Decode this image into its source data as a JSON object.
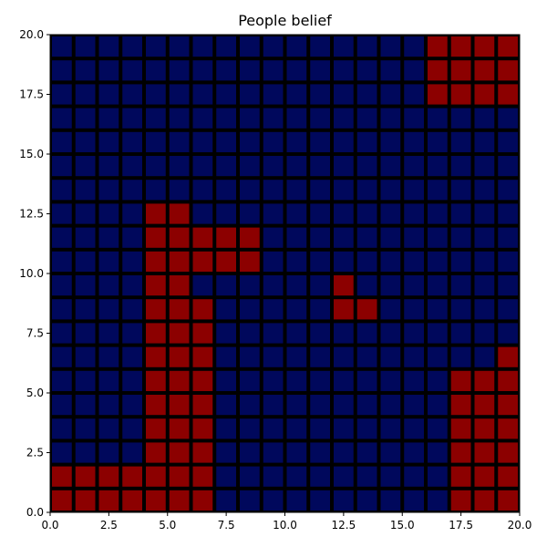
{
  "chart_data": {
    "type": "heatmap",
    "title": "People belief",
    "xlabel": "",
    "ylabel": "",
    "xlim": [
      0,
      20
    ],
    "ylim": [
      0,
      20
    ],
    "grid": false,
    "x_ticks": [
      0,
      2.5,
      5,
      7.5,
      10,
      12.5,
      15,
      17.5,
      20
    ],
    "y_ticks": [
      0,
      2.5,
      5,
      7.5,
      10,
      12.5,
      15,
      17.5,
      20
    ],
    "x_tick_labels": [
      "0.0",
      "2.5",
      "5.0",
      "7.5",
      "10.0",
      "12.5",
      "15.0",
      "17.5",
      "20.0"
    ],
    "y_tick_labels": [
      "0.0",
      "2.5",
      "5.0",
      "7.5",
      "10.0",
      "12.5",
      "15.0",
      "17.5",
      "20.0"
    ],
    "colors": {
      "0": "#00085c",
      "1": "#8c0000",
      "cell_border": "#000000",
      "background": "#000000"
    },
    "cells_top_to_bottom": [
      "00000000000000001111",
      "00000000000000001111",
      "00000000000000001111",
      "00000000000000000000",
      "00000000000000000000",
      "00000000000000000000",
      "00000000000000000000",
      "00001100000000000000",
      "00001111100000000000",
      "00001111100000000000",
      "00001100000010000000",
      "00001110000011000000",
      "00001110000000000000",
      "00001110000000000001",
      "00001110000000000111",
      "00001110000000000111",
      "00001110000000000111",
      "00001110000000000111",
      "11111110000000000111",
      "11111110000000000111"
    ]
  }
}
